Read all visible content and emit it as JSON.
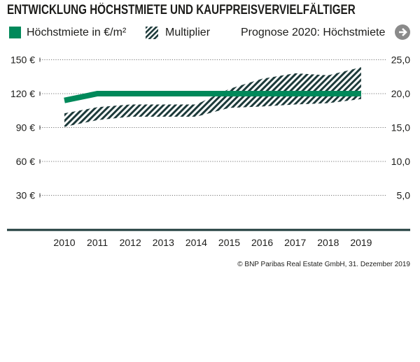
{
  "title": "ENTWICKLUNG HÖCHSTMIETE UND KAUFPREISVERVIELFÄLTIGER",
  "legend": {
    "rent": "Höchstmiete in €/m²",
    "multiplier": "Multiplier",
    "forecast": "Prognose 2020: Höchstmiete"
  },
  "credit": "© BNP Paribas Real Estate GmbH, 31. Dezember 2019",
  "colors": {
    "rent": "#00895a",
    "multiplier": "#1d3a3a",
    "axis": "#1d3a3a"
  },
  "chart_data": {
    "type": "line",
    "categories": [
      "2010",
      "2011",
      "2012",
      "2013",
      "2014",
      "2015",
      "2016",
      "2017",
      "2018",
      "2019"
    ],
    "series": [
      {
        "name": "Höchstmiete in €/m²",
        "axis": "left",
        "values": [
          114,
          120,
          120,
          120,
          120,
          120,
          120,
          120,
          120,
          120
        ]
      },
      {
        "name": "Multiplier",
        "axis": "right",
        "type": "band",
        "lower": [
          15.1,
          16.1,
          16.6,
          16.6,
          16.6,
          17.9,
          18.1,
          18.4,
          18.6,
          19.2
        ],
        "upper": [
          17.1,
          18.0,
          18.4,
          18.4,
          18.4,
          20.7,
          22.2,
          23.0,
          22.7,
          23.9
        ]
      }
    ],
    "y_left": {
      "ticks": [
        "30 €",
        "60 €",
        "90 €",
        "120 €",
        "150 €"
      ],
      "range": [
        0,
        150
      ]
    },
    "y_right": {
      "ticks": [
        "5,0",
        "10,0",
        "15,0",
        "20,0",
        "25,0"
      ],
      "range": [
        0,
        25
      ]
    },
    "grid": "dotted horizontal"
  }
}
